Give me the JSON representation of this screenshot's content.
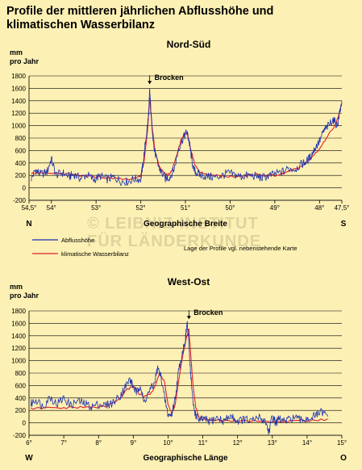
{
  "page": {
    "title_line1": "Profile der mittleren jährlichen Abflusshöhe und",
    "title_line2": "klimatischen Wasserbilanz",
    "watermark_line1": "© LEIBNIZ-INSTITUT",
    "watermark_line2": "FÜR LÄNDERKUNDE",
    "background_color": "#fdf0b4"
  },
  "legend": {
    "items": [
      {
        "label": "Abflusshöhe",
        "color": "#1a2fb0"
      },
      {
        "label": "klimatische Wasserbilanz",
        "color": "#e0202a"
      }
    ],
    "note": "Lage der Profile vgl. nebenstehende Karte"
  },
  "chart_data": [
    {
      "type": "line",
      "title": "Nord-Süd",
      "ylabel_line1": "mm",
      "ylabel_line2": "pro Jahr",
      "xlabel": "Geographische Breite",
      "x_start_label": "N",
      "x_end_label": "S",
      "xlim": [
        54.5,
        47.5
      ],
      "ylim": [
        -200,
        1800
      ],
      "yticks": [
        -200,
        0,
        200,
        400,
        600,
        800,
        1000,
        1200,
        1400,
        1600,
        1800
      ],
      "xticks": [
        {
          "value": 54.5,
          "label": "54,5°"
        },
        {
          "value": 54,
          "label": "54°"
        },
        {
          "value": 53,
          "label": "53°"
        },
        {
          "value": 52,
          "label": "52°"
        },
        {
          "value": 51,
          "label": "51°"
        },
        {
          "value": 50,
          "label": "50°"
        },
        {
          "value": 49,
          "label": "49°"
        },
        {
          "value": 48,
          "label": "48°"
        },
        {
          "value": 47.5,
          "label": "47,5°"
        }
      ],
      "grid": "horizontal",
      "annotation": {
        "label": "Brocken",
        "x": 51.8,
        "y": 1680
      },
      "series": [
        {
          "name": "Abflusshöhe",
          "color": "#1a2fb0",
          "x": [
            54.45,
            54.35,
            54.25,
            54.1,
            54.0,
            53.9,
            53.75,
            53.6,
            53.5,
            53.35,
            53.2,
            53.05,
            52.9,
            52.75,
            52.6,
            52.45,
            52.3,
            52.15,
            52.0,
            51.95,
            51.88,
            51.82,
            51.8,
            51.76,
            51.7,
            51.62,
            51.55,
            51.45,
            51.35,
            51.25,
            51.15,
            51.05,
            50.97,
            50.92,
            50.88,
            50.82,
            50.75,
            50.65,
            50.5,
            50.35,
            50.2,
            50.05,
            49.9,
            49.75,
            49.6,
            49.45,
            49.3,
            49.15,
            49.0,
            48.85,
            48.7,
            48.55,
            48.4,
            48.3,
            48.2,
            48.1,
            48.0,
            47.9,
            47.8,
            47.7,
            47.6,
            47.55,
            47.5
          ],
          "values": [
            150,
            290,
            220,
            250,
            470,
            210,
            240,
            180,
            220,
            150,
            210,
            130,
            190,
            140,
            170,
            110,
            100,
            140,
            140,
            380,
            820,
            1200,
            1580,
            1100,
            620,
            380,
            260,
            150,
            170,
            310,
            640,
            800,
            900,
            760,
            560,
            300,
            240,
            200,
            180,
            170,
            190,
            240,
            210,
            180,
            200,
            190,
            160,
            190,
            220,
            250,
            310,
            300,
            380,
            420,
            500,
            640,
            750,
            920,
            1000,
            1100,
            1000,
            1200,
            1400
          ]
        },
        {
          "name": "klimatische Wasserbilanz",
          "color": "#e0202a",
          "x": [
            54.45,
            54.3,
            54.1,
            53.9,
            53.7,
            53.5,
            53.3,
            53.1,
            52.9,
            52.7,
            52.5,
            52.3,
            52.1,
            52.0,
            51.92,
            51.85,
            51.8,
            51.75,
            51.68,
            51.6,
            51.5,
            51.4,
            51.3,
            51.2,
            51.1,
            51.02,
            50.95,
            50.88,
            50.8,
            50.7,
            50.55,
            50.4,
            50.2,
            50.0,
            49.8,
            49.6,
            49.4,
            49.2,
            49.0,
            48.8,
            48.6,
            48.4,
            48.2,
            48.0,
            47.85,
            47.7,
            47.6,
            47.5
          ],
          "values": [
            230,
            240,
            230,
            230,
            220,
            210,
            200,
            190,
            170,
            160,
            150,
            140,
            150,
            200,
            450,
            900,
            1450,
            1000,
            600,
            380,
            250,
            200,
            280,
            520,
            760,
            880,
            860,
            620,
            400,
            260,
            220,
            200,
            190,
            180,
            180,
            200,
            210,
            200,
            200,
            230,
            280,
            350,
            460,
            620,
            800,
            950,
            1100,
            1360
          ]
        }
      ]
    },
    {
      "type": "line",
      "title": "West-Ost",
      "ylabel_line1": "mm",
      "ylabel_line2": "pro Jahr",
      "xlabel": "Geographische Länge",
      "x_start_label": "W",
      "x_end_label": "O",
      "xlim": [
        6,
        15
      ],
      "ylim": [
        -200,
        1800
      ],
      "yticks": [
        -200,
        0,
        200,
        400,
        600,
        800,
        1000,
        1200,
        1400,
        1600,
        1800
      ],
      "xticks": [
        {
          "value": 6,
          "label": "6°"
        },
        {
          "value": 7,
          "label": "7°"
        },
        {
          "value": 8,
          "label": "8°"
        },
        {
          "value": 9,
          "label": "9°"
        },
        {
          "value": 10,
          "label": "10°"
        },
        {
          "value": 11,
          "label": "11°"
        },
        {
          "value": 12,
          "label": "12°"
        },
        {
          "value": 13,
          "label": "13°"
        },
        {
          "value": 14,
          "label": "14°"
        },
        {
          "value": 15,
          "label": "15°"
        }
      ],
      "grid": "horizontal",
      "annotation": {
        "label": "Brocken",
        "x": 10.6,
        "y": 1680
      },
      "series": [
        {
          "name": "Abflusshöhe",
          "color": "#1a2fb0",
          "x": [
            6.05,
            6.2,
            6.4,
            6.6,
            6.8,
            7.0,
            7.2,
            7.4,
            7.6,
            7.8,
            8.0,
            8.2,
            8.4,
            8.6,
            8.75,
            8.9,
            9.0,
            9.1,
            9.2,
            9.3,
            9.45,
            9.6,
            9.7,
            9.8,
            9.9,
            10.0,
            10.1,
            10.2,
            10.3,
            10.4,
            10.5,
            10.55,
            10.6,
            10.65,
            10.72,
            10.8,
            10.9,
            11.0,
            11.2,
            11.4,
            11.6,
            11.8,
            12.0,
            12.2,
            12.4,
            12.6,
            12.8,
            12.9,
            13.0,
            13.1,
            13.2,
            13.4,
            13.6,
            13.8,
            14.0,
            14.2,
            14.4,
            14.6
          ],
          "values": [
            300,
            380,
            260,
            420,
            300,
            400,
            280,
            350,
            310,
            260,
            300,
            280,
            320,
            420,
            560,
            700,
            580,
            480,
            620,
            320,
            500,
            620,
            880,
            740,
            400,
            130,
            120,
            380,
            820,
            1100,
            1350,
            1620,
            1250,
            800,
            300,
            120,
            40,
            60,
            20,
            80,
            30,
            110,
            30,
            60,
            20,
            90,
            30,
            -150,
            100,
            0,
            60,
            20,
            90,
            40,
            70,
            100,
            170,
            100
          ]
        },
        {
          "name": "klimatische Wasserbilanz",
          "color": "#e0202a",
          "x": [
            6.05,
            6.3,
            6.6,
            7.0,
            7.4,
            7.8,
            8.2,
            8.6,
            8.8,
            9.0,
            9.15,
            9.3,
            9.45,
            9.6,
            9.75,
            9.9,
            10.0,
            10.1,
            10.2,
            10.3,
            10.4,
            10.5,
            10.6,
            10.65,
            10.72,
            10.8,
            10.9,
            11.0,
            11.3,
            11.6,
            12.0,
            12.4,
            12.8,
            13.2,
            13.6,
            14.0,
            14.4,
            14.6
          ],
          "values": [
            230,
            230,
            240,
            240,
            250,
            250,
            260,
            380,
            520,
            600,
            480,
            420,
            450,
            550,
            800,
            650,
            300,
            150,
            280,
            650,
            1000,
            1300,
            1500,
            1100,
            600,
            250,
            80,
            50,
            40,
            30,
            30,
            30,
            20,
            20,
            30,
            40,
            50,
            60
          ]
        }
      ]
    }
  ]
}
